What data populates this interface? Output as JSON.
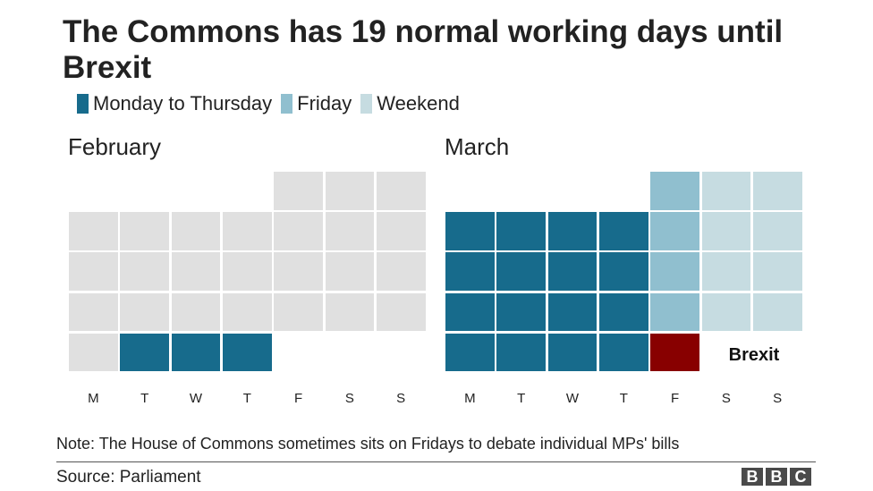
{
  "title": "The Commons has 19 normal working days until Brexit",
  "legend": [
    {
      "key": "weekday",
      "label": "Monday to Thursday",
      "color": "#176b8c"
    },
    {
      "key": "friday",
      "label": "Friday",
      "color": "#90bfcf"
    },
    {
      "key": "weekend",
      "label": "Weekend",
      "color": "#c6dce1"
    }
  ],
  "colors": {
    "past": "#e0e0e0",
    "weekday": "#176b8c",
    "friday": "#90bfcf",
    "weekend": "#c6dce1",
    "brexit": "#880000"
  },
  "chart_data": {
    "type": "heatmap",
    "title": "The Commons has 19 normal working days until Brexit",
    "day_labels": [
      "M",
      "T",
      "W",
      "T",
      "F",
      "S",
      "S"
    ],
    "months": [
      {
        "name": "February",
        "weeks": [
          [
            null,
            null,
            null,
            null,
            "past",
            "past",
            "past"
          ],
          [
            "past",
            "past",
            "past",
            "past",
            "past",
            "past",
            "past"
          ],
          [
            "past",
            "past",
            "past",
            "past",
            "past",
            "past",
            "past"
          ],
          [
            "past",
            "past",
            "past",
            "past",
            "past",
            "past",
            "past"
          ],
          [
            "past",
            "weekday",
            "weekday",
            "weekday",
            null,
            null,
            null
          ]
        ]
      },
      {
        "name": "March",
        "weeks": [
          [
            null,
            null,
            null,
            null,
            "friday",
            "weekend",
            "weekend"
          ],
          [
            "weekday",
            "weekday",
            "weekday",
            "weekday",
            "friday",
            "weekend",
            "weekend"
          ],
          [
            "weekday",
            "weekday",
            "weekday",
            "weekday",
            "friday",
            "weekend",
            "weekend"
          ],
          [
            "weekday",
            "weekday",
            "weekday",
            "weekday",
            "friday",
            "weekend",
            "weekend"
          ],
          [
            "weekday",
            "weekday",
            "weekday",
            "weekday",
            "brexit",
            null,
            null
          ]
        ]
      }
    ],
    "annotation": "Brexit"
  },
  "note": "Note: The House of Commons sometimes sits on Fridays to debate individual MPs' bills",
  "source": "Source: Parliament",
  "logo": [
    "B",
    "B",
    "C"
  ]
}
